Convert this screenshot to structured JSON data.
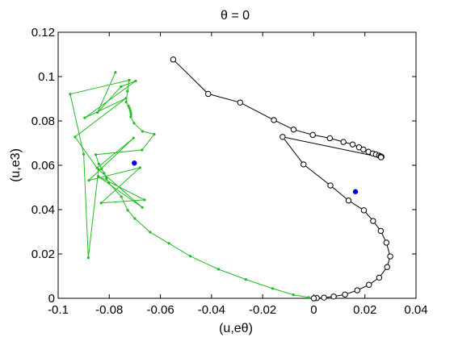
{
  "chart_data": {
    "type": "line",
    "title": "θ = 0",
    "xlabel": "(u,eθ)",
    "ylabel": "(u,e3)",
    "xlim": [
      -0.1,
      0.04
    ],
    "ylim": [
      0,
      0.12
    ],
    "grid": false,
    "x_ticks": [
      "-0.1",
      "-0.08",
      "-0.06",
      "-0.04",
      "-0.02",
      "0",
      "0.02",
      "0.04"
    ],
    "x_tick_values": [
      -0.1,
      -0.08,
      -0.06,
      -0.04,
      -0.02,
      0,
      0.02,
      0.04
    ],
    "y_ticks": [
      "0",
      "0.02",
      "0.04",
      "0.06",
      "0.08",
      "0.1",
      "0.12"
    ],
    "y_tick_values": [
      0,
      0.02,
      0.04,
      0.06,
      0.08,
      0.1,
      0.12
    ],
    "colors": {
      "green": "#22bb22",
      "black": "#000000",
      "blue": "#0000dd"
    },
    "series": [
      {
        "color": "#22bb22",
        "marker": "dot",
        "points": [
          [
            -0.0776,
            0.1019
          ],
          [
            -0.0846,
            0.0838
          ],
          [
            -0.0754,
            0.0955
          ],
          [
            -0.0697,
            0.098
          ],
          [
            -0.0896,
            0.0814
          ],
          [
            -0.0735,
            0.0902
          ],
          [
            -0.0934,
            0.0728
          ],
          [
            -0.0848,
            0.0588
          ],
          [
            -0.0705,
            0.0723
          ],
          [
            -0.088,
            0.0532
          ],
          [
            -0.068,
            0.0589
          ],
          [
            -0.0832,
            0.043
          ],
          [
            -0.0662,
            0.0444
          ],
          [
            -0.0843,
            0.055
          ],
          [
            -0.0671,
            0.041
          ],
          [
            -0.0842,
            0.0581
          ],
          [
            -0.0882,
            0.0183
          ],
          [
            -0.09,
            0.065
          ],
          [
            -0.0953,
            0.0921
          ],
          [
            -0.0722,
            0.0984
          ],
          [
            -0.0729,
            0.0934
          ],
          [
            -0.0734,
            0.0885
          ],
          [
            -0.0725,
            0.0868
          ],
          [
            -0.0721,
            0.0858
          ],
          [
            -0.0718,
            0.0848
          ],
          [
            -0.0716,
            0.0838
          ],
          [
            -0.0715,
            0.0828
          ],
          [
            -0.0716,
            0.0818
          ],
          [
            -0.0703,
            0.079
          ],
          [
            -0.067,
            0.0753
          ],
          [
            -0.0624,
            0.074
          ],
          [
            -0.0672,
            0.0669
          ],
          [
            -0.0853,
            0.0648
          ],
          [
            -0.0841,
            0.0606
          ],
          [
            -0.083,
            0.0584
          ],
          [
            -0.082,
            0.0564
          ],
          [
            -0.0811,
            0.0541
          ],
          [
            -0.0802,
            0.052
          ],
          [
            -0.0753,
            0.0458
          ],
          [
            -0.0728,
            0.0397
          ],
          [
            -0.07,
            0.036
          ],
          [
            -0.064,
            0.0298
          ],
          [
            -0.0567,
            0.0248
          ],
          [
            -0.0483,
            0.019
          ],
          [
            -0.0373,
            0.0131
          ],
          [
            -0.0266,
            0.0085
          ],
          [
            -0.0161,
            0.0044
          ],
          [
            -0.008,
            0.0016
          ],
          [
            -0.002,
            0.0004
          ],
          [
            0.0,
            0.0
          ]
        ]
      },
      {
        "color": "#000000",
        "marker": "open-circle",
        "points": [
          [
            -0.055,
            0.1077
          ],
          [
            -0.0413,
            0.0922
          ],
          [
            -0.0288,
            0.0883
          ],
          [
            -0.0156,
            0.0804
          ],
          [
            -0.0079,
            0.0761
          ],
          [
            -0.0004,
            0.0737
          ],
          [
            0.0063,
            0.0722
          ],
          [
            0.0116,
            0.0705
          ],
          [
            0.0152,
            0.0694
          ],
          [
            0.0177,
            0.0681
          ],
          [
            0.0194,
            0.0671
          ],
          [
            0.0214,
            0.0661
          ],
          [
            0.0231,
            0.0653
          ],
          [
            0.0243,
            0.0649
          ],
          [
            0.0255,
            0.0644
          ],
          [
            0.0261,
            0.064
          ],
          [
            0.0265,
            0.0638
          ],
          [
            0.0263,
            0.0636
          ],
          [
            -0.0122,
            0.0728
          ],
          [
            -0.004,
            0.0604
          ],
          [
            0.0065,
            0.0509
          ],
          [
            0.0136,
            0.0441
          ],
          [
            0.0196,
            0.0397
          ],
          [
            0.0232,
            0.0349
          ],
          [
            0.0262,
            0.0304
          ],
          [
            0.0284,
            0.0251
          ],
          [
            0.0299,
            0.0189
          ],
          [
            0.0287,
            0.0141
          ],
          [
            0.0256,
            0.0093
          ],
          [
            0.0216,
            0.0061
          ],
          [
            0.017,
            0.0036
          ],
          [
            0.0122,
            0.0017
          ],
          [
            0.0078,
            0.0008
          ],
          [
            0.004,
            0.0003
          ],
          [
            0.0012,
            0.0001
          ],
          [
            0.0,
            0.0
          ]
        ]
      },
      {
        "color": "#0000dd",
        "marker": "filled-dot",
        "points": [
          [
            -0.0702,
            0.061
          ],
          [
            0.0163,
            0.0481
          ]
        ]
      }
    ]
  }
}
